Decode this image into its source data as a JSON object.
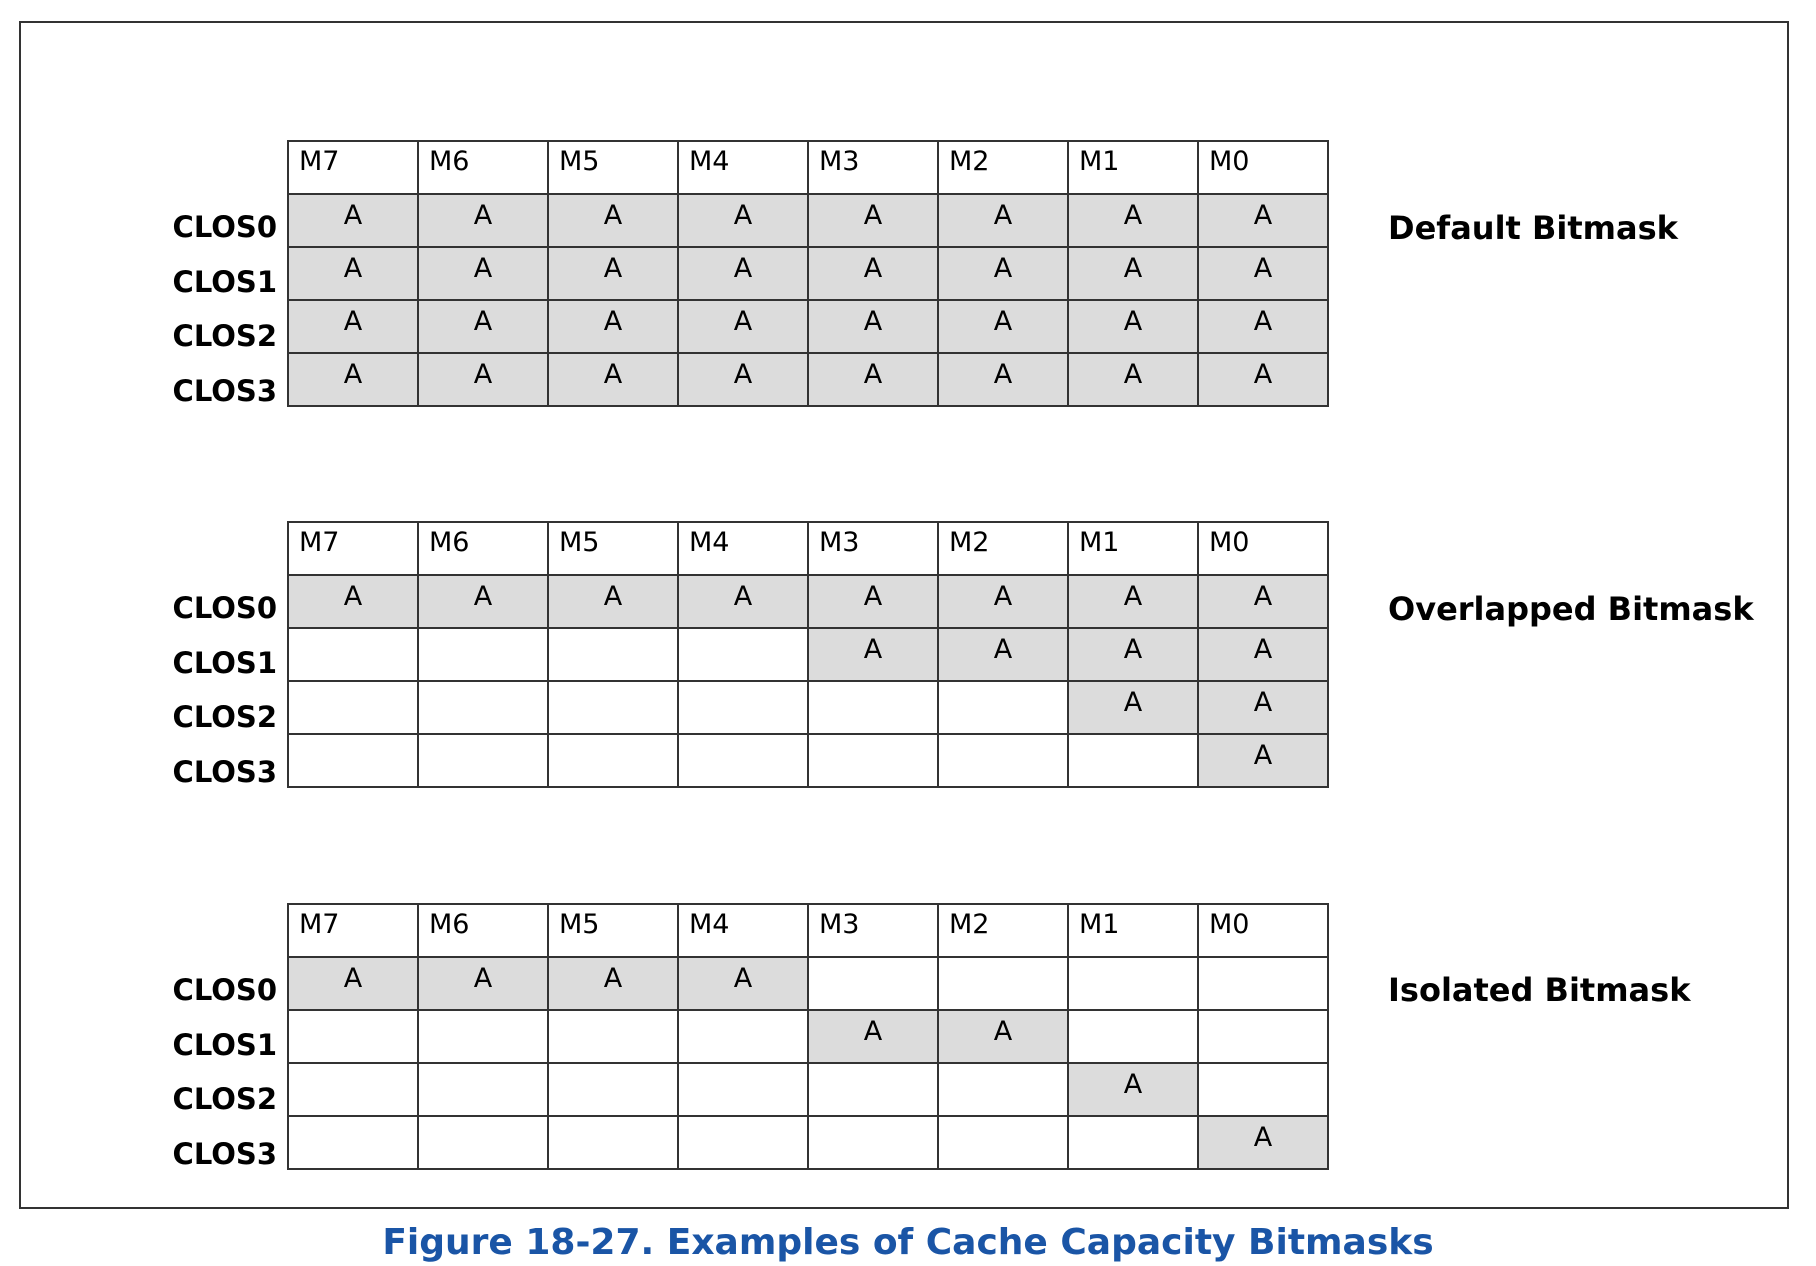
{
  "columns": [
    "M7",
    "M6",
    "M5",
    "M4",
    "M3",
    "M2",
    "M1",
    "M0"
  ],
  "rows": [
    "CLOS0",
    "CLOS1",
    "CLOS2",
    "CLOS3"
  ],
  "cell_text": "A",
  "fill_color": "#dcdcdc",
  "blocks": [
    {
      "label": "Default Bitmask",
      "mask": [
        [
          1,
          1,
          1,
          1,
          1,
          1,
          1,
          1
        ],
        [
          1,
          1,
          1,
          1,
          1,
          1,
          1,
          1
        ],
        [
          1,
          1,
          1,
          1,
          1,
          1,
          1,
          1
        ],
        [
          1,
          1,
          1,
          1,
          1,
          1,
          1,
          1
        ]
      ]
    },
    {
      "label": "Overlapped Bitmask",
      "mask": [
        [
          1,
          1,
          1,
          1,
          1,
          1,
          1,
          1
        ],
        [
          0,
          0,
          0,
          0,
          1,
          1,
          1,
          1
        ],
        [
          0,
          0,
          0,
          0,
          0,
          0,
          1,
          1
        ],
        [
          0,
          0,
          0,
          0,
          0,
          0,
          0,
          1
        ]
      ]
    },
    {
      "label": "Isolated Bitmask",
      "mask": [
        [
          1,
          1,
          1,
          1,
          0,
          0,
          0,
          0
        ],
        [
          0,
          0,
          0,
          0,
          1,
          1,
          0,
          0
        ],
        [
          0,
          0,
          0,
          0,
          0,
          0,
          1,
          0
        ],
        [
          0,
          0,
          0,
          0,
          0,
          0,
          0,
          1
        ]
      ]
    }
  ],
  "caption": "Figure 18-27.  Examples of Cache Capacity Bitmasks"
}
